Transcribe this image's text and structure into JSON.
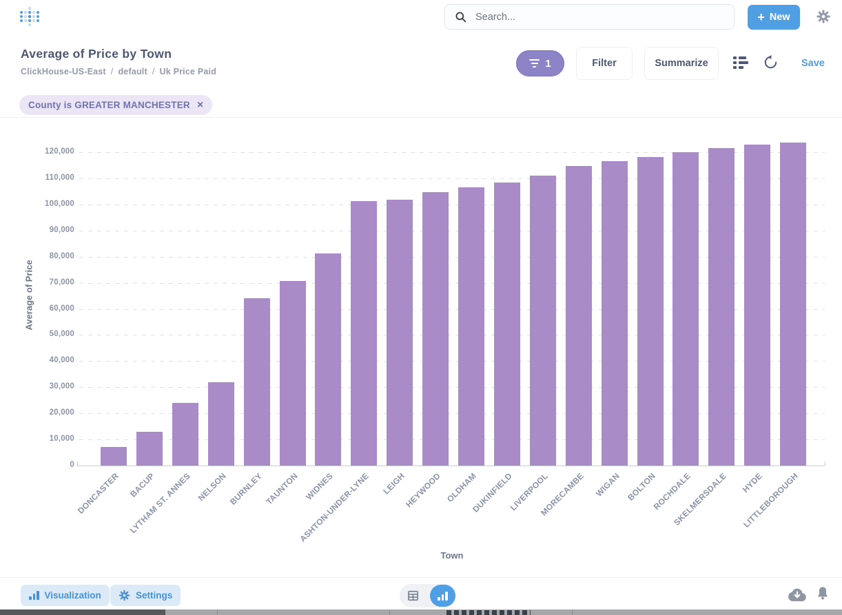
{
  "header": {
    "search": {
      "placeholder": "Search..."
    },
    "new_button": {
      "label": "New",
      "plus_glyph": "+"
    }
  },
  "question": {
    "title": "Average of Price by Town",
    "breadcrumb": {
      "parts": [
        "ClickHouse-US-East",
        "default",
        "Uk Price Paid"
      ],
      "separator": "/"
    },
    "toolbar": {
      "active_filter_count": "1",
      "filter_label": "Filter",
      "summarize_label": "Summarize",
      "save_label": "Save"
    },
    "filters": [
      {
        "label": "County is GREATER MANCHESTER",
        "remove_glyph": "×"
      }
    ]
  },
  "chart_data": {
    "type": "bar",
    "title": "Average of Price by Town",
    "xlabel": "Town",
    "ylabel": "Average of Price",
    "ylim": [
      0,
      130000
    ],
    "ytick_step": 10000,
    "ytick_max": 120000,
    "grid": "horizontal-dashed",
    "legend": "none",
    "bar_color": "#A88BC7",
    "categories": [
      "DONCASTER",
      "BACUP",
      "LYTHAM ST. ANNES",
      "NELSON",
      "BURNLEY",
      "TAUNTON",
      "WIDNES",
      "ASHTON-UNDER-LYNE",
      "LEIGH",
      "HEYWOOD",
      "OLDHAM",
      "DUKINFIELD",
      "LIVERPOOL",
      "MORECAMBE",
      "WIGAN",
      "BOLTON",
      "ROCHDALE",
      "SKELMERSDALE",
      "HYDE",
      "LITTLEBOROUGH"
    ],
    "values": [
      7100,
      13000,
      24100,
      32000,
      64200,
      70700,
      81100,
      101400,
      101900,
      104800,
      106500,
      108300,
      110900,
      114700,
      116600,
      118100,
      120100,
      121600,
      122800,
      123600
    ]
  },
  "footer": {
    "visualization_label": "Visualization",
    "settings_label": "Settings",
    "view_toggle_active": "chart"
  },
  "colors": {
    "accent": "#509EE3",
    "bar": "#A88BC7",
    "filter_pill": "#8D84C7",
    "chip_bg": "#EBE5F6",
    "chip_text": "#7173AD",
    "title_text": "#4C5773",
    "muted_text": "#949AAB"
  },
  "icons": {
    "logo": "metabase-dot-grid",
    "search": "magnifier",
    "new": "plus",
    "settings": "gear",
    "active_filters": "funnel",
    "editor": "notebook-list",
    "refresh": "circular-arrow",
    "chip_close": "x",
    "visualization": "mini-bar-chart",
    "view_table": "table-grid",
    "view_chart": "mini-bar-chart",
    "download": "cloud-download",
    "alerts": "bell"
  }
}
